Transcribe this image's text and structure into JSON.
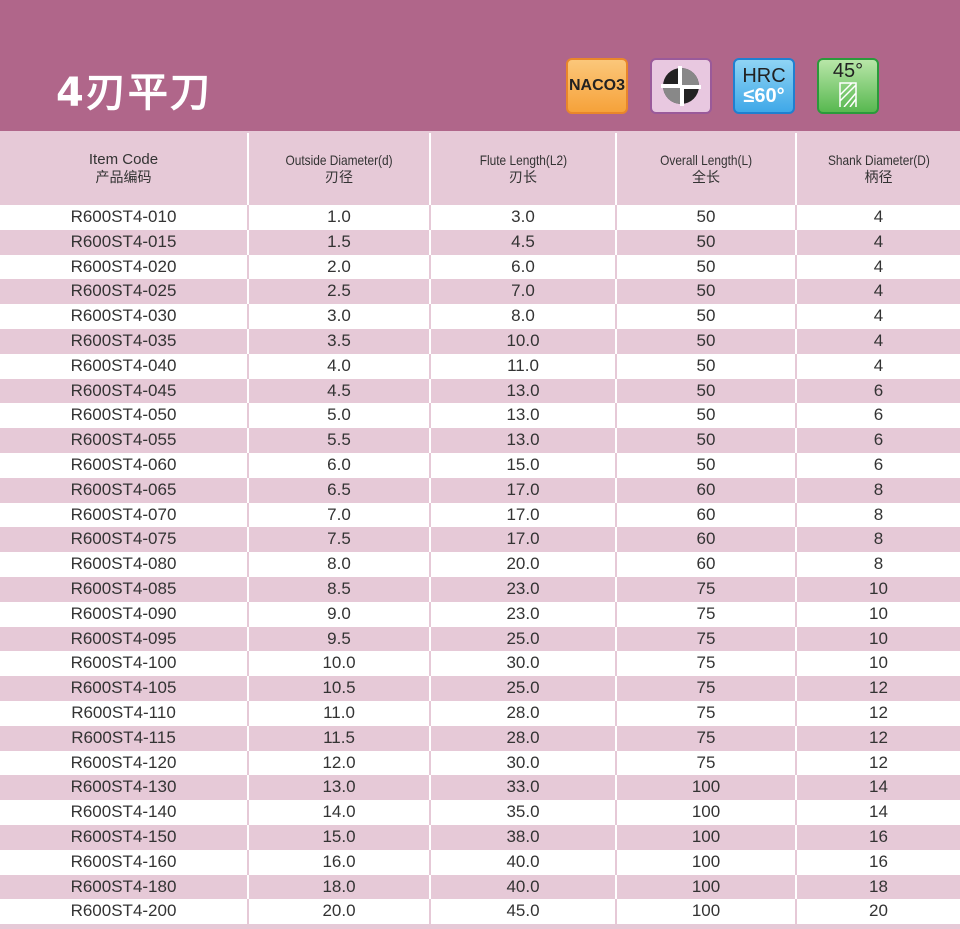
{
  "title": "4刃平刀",
  "badges": {
    "coating": "NACO3",
    "flutes_icon": "four-flute-cross-section-icon",
    "hrc_label": "HRC",
    "hrc_value": "≤60°",
    "helix_angle": "45°"
  },
  "colors": {
    "banner": "#b0668a",
    "row_alt": "#e6c9d7"
  },
  "columns": [
    {
      "en": "Item Code",
      "zh": "产品编码"
    },
    {
      "en": "Outside Diameter(d)",
      "zh": "刃径"
    },
    {
      "en": "Flute Length(L2)",
      "zh": "刃长"
    },
    {
      "en": "Overall Length(L)",
      "zh": "全长"
    },
    {
      "en": "Shank Diameter(D)",
      "zh": "柄径"
    }
  ],
  "rows": [
    [
      "R600ST4-010",
      "1.0",
      "3.0",
      "50",
      "4"
    ],
    [
      "R600ST4-015",
      "1.5",
      "4.5",
      "50",
      "4"
    ],
    [
      "R600ST4-020",
      "2.0",
      "6.0",
      "50",
      "4"
    ],
    [
      "R600ST4-025",
      "2.5",
      "7.0",
      "50",
      "4"
    ],
    [
      "R600ST4-030",
      "3.0",
      "8.0",
      "50",
      "4"
    ],
    [
      "R600ST4-035",
      "3.5",
      "10.0",
      "50",
      "4"
    ],
    [
      "R600ST4-040",
      "4.0",
      "11.0",
      "50",
      "4"
    ],
    [
      "R600ST4-045",
      "4.5",
      "13.0",
      "50",
      "6"
    ],
    [
      "R600ST4-050",
      "5.0",
      "13.0",
      "50",
      "6"
    ],
    [
      "R600ST4-055",
      "5.5",
      "13.0",
      "50",
      "6"
    ],
    [
      "R600ST4-060",
      "6.0",
      "15.0",
      "50",
      "6"
    ],
    [
      "R600ST4-065",
      "6.5",
      "17.0",
      "60",
      "8"
    ],
    [
      "R600ST4-070",
      "7.0",
      "17.0",
      "60",
      "8"
    ],
    [
      "R600ST4-075",
      "7.5",
      "17.0",
      "60",
      "8"
    ],
    [
      "R600ST4-080",
      "8.0",
      "20.0",
      "60",
      "8"
    ],
    [
      "R600ST4-085",
      "8.5",
      "23.0",
      "75",
      "10"
    ],
    [
      "R600ST4-090",
      "9.0",
      "23.0",
      "75",
      "10"
    ],
    [
      "R600ST4-095",
      "9.5",
      "25.0",
      "75",
      "10"
    ],
    [
      "R600ST4-100",
      "10.0",
      "30.0",
      "75",
      "10"
    ],
    [
      "R600ST4-105",
      "10.5",
      "25.0",
      "75",
      "12"
    ],
    [
      "R600ST4-110",
      "11.0",
      "28.0",
      "75",
      "12"
    ],
    [
      "R600ST4-115",
      "11.5",
      "28.0",
      "75",
      "12"
    ],
    [
      "R600ST4-120",
      "12.0",
      "30.0",
      "75",
      "12"
    ],
    [
      "R600ST4-130",
      "13.0",
      "33.0",
      "100",
      "14"
    ],
    [
      "R600ST4-140",
      "14.0",
      "35.0",
      "100",
      "14"
    ],
    [
      "R600ST4-150",
      "15.0",
      "38.0",
      "100",
      "16"
    ],
    [
      "R600ST4-160",
      "16.0",
      "40.0",
      "100",
      "16"
    ],
    [
      "R600ST4-180",
      "18.0",
      "40.0",
      "100",
      "18"
    ],
    [
      "R600ST4-200",
      "20.0",
      "45.0",
      "100",
      "20"
    ]
  ]
}
